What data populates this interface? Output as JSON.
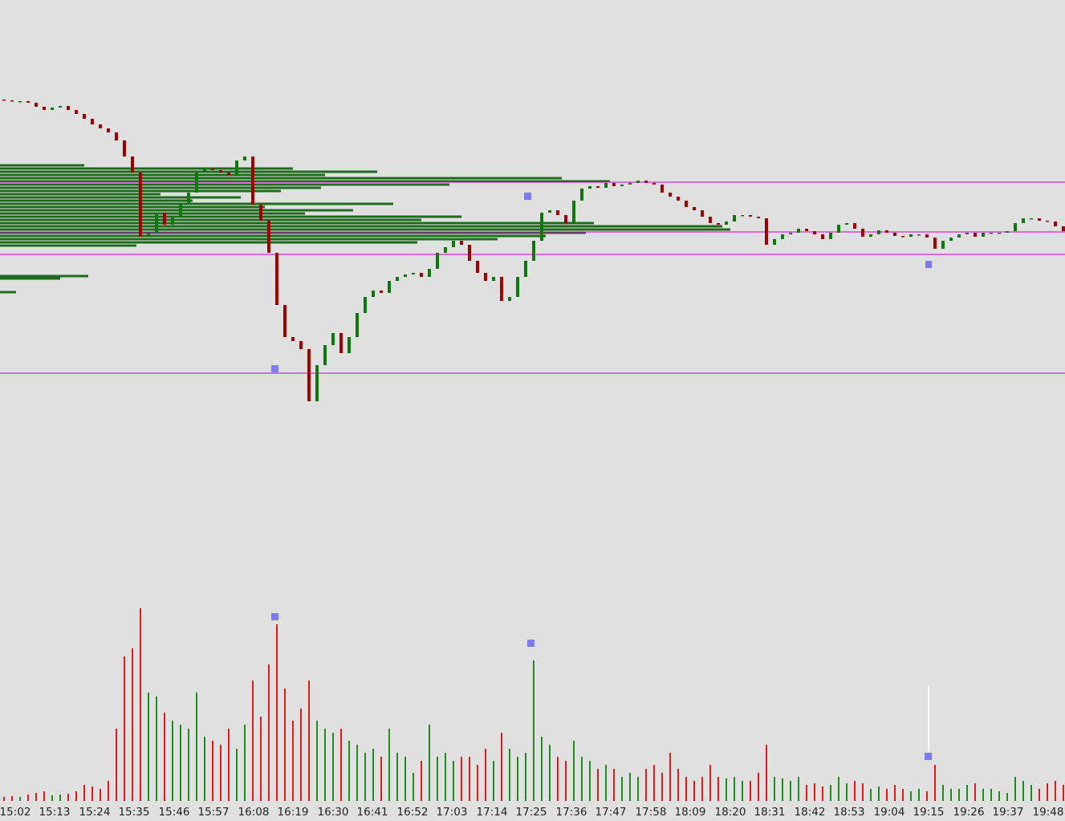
{
  "chart_data": [
    {
      "type": "candlestick",
      "xlim": [
        0,
        132.7
      ],
      "ylim": [
        0,
        700
      ],
      "up_color": "#0b7a0b",
      "down_color": "#a00000",
      "open": [
        576,
        575,
        574,
        574,
        572,
        567,
        563,
        566,
        568,
        563,
        558,
        552,
        545,
        540,
        535,
        525,
        505,
        485,
        405,
        410,
        435,
        420,
        430,
        445,
        460,
        485,
        490,
        488,
        485,
        482,
        500,
        505,
        445,
        425,
        385,
        320,
        280,
        275,
        265,
        200,
        245,
        270,
        285,
        260,
        280,
        310,
        330,
        338,
        335,
        350,
        355,
        358,
        360,
        355,
        365,
        385,
        392,
        400,
        395,
        375,
        360,
        350,
        355,
        325,
        330,
        355,
        375,
        400,
        435,
        438,
        432,
        422,
        450,
        465,
        468,
        466,
        472,
        468,
        470,
        472,
        475,
        472,
        470,
        460,
        455,
        450,
        442,
        438,
        430,
        422,
        420,
        424,
        432,
        432,
        430,
        428,
        395,
        402,
        408,
        410,
        415,
        412,
        408,
        402,
        410,
        420,
        422,
        415,
        405,
        408,
        413,
        410,
        406,
        405,
        408,
        408,
        404,
        390,
        400,
        404,
        408,
        410,
        405,
        410,
        410,
        410,
        412,
        422,
        428,
        428,
        425,
        424,
        418
      ],
      "close": [
        575,
        574,
        574,
        572,
        567,
        563,
        566,
        568,
        563,
        558,
        552,
        545,
        540,
        535,
        525,
        505,
        485,
        405,
        410,
        435,
        420,
        430,
        445,
        460,
        485,
        490,
        488,
        485,
        482,
        500,
        505,
        445,
        425,
        385,
        320,
        280,
        275,
        265,
        200,
        245,
        270,
        285,
        260,
        280,
        310,
        330,
        338,
        335,
        350,
        355,
        358,
        360,
        355,
        365,
        385,
        392,
        400,
        395,
        375,
        360,
        350,
        355,
        325,
        330,
        355,
        375,
        400,
        435,
        438,
        432,
        422,
        450,
        465,
        468,
        466,
        472,
        468,
        470,
        472,
        475,
        472,
        470,
        460,
        455,
        450,
        442,
        438,
        430,
        422,
        420,
        424,
        432,
        432,
        430,
        428,
        395,
        402,
        408,
        410,
        415,
        412,
        408,
        402,
        410,
        420,
        422,
        415,
        405,
        408,
        413,
        410,
        406,
        405,
        408,
        408,
        404,
        390,
        400,
        404,
        408,
        410,
        405,
        410,
        410,
        410,
        412,
        422,
        428,
        428,
        425,
        424,
        418,
        412
      ],
      "levels": [
        473,
        411,
        383,
        235
      ],
      "level_color": "#cc00cc",
      "profile": {
        "color": "#1e6b1e",
        "xlim": [
          0,
          1327
        ],
        "prices": [
          494,
          490,
          486,
          482,
          478,
          474,
          470,
          466,
          462,
          458,
          454,
          450,
          446,
          442,
          438,
          434,
          430,
          426,
          422,
          418,
          414,
          410,
          406,
          402,
          398,
          394,
          356,
          353,
          336
        ],
        "values": [
          105,
          365,
          470,
          405,
          700,
          760,
          560,
          400,
          350,
          200,
          300,
          240,
          490,
          330,
          440,
          380,
          575,
          525,
          740,
          900,
          910,
          730,
          680,
          620,
          520,
          170,
          110,
          75,
          20
        ]
      }
    },
    {
      "type": "bar",
      "xlim": [
        0,
        132.7
      ],
      "ylim": [
        0,
        260
      ],
      "up_color": "#1e8c1e",
      "down_color": "#e01a1a",
      "values": [
        5,
        6,
        5,
        8,
        10,
        12,
        7,
        8,
        9,
        12,
        20,
        18,
        15,
        25,
        90,
        180,
        190,
        240,
        135,
        130,
        110,
        100,
        95,
        90,
        135,
        80,
        75,
        70,
        90,
        65,
        95,
        150,
        105,
        170,
        220,
        140,
        100,
        115,
        150,
        100,
        90,
        85,
        90,
        75,
        70,
        60,
        65,
        55,
        90,
        60,
        55,
        35,
        50,
        95,
        55,
        60,
        50,
        55,
        55,
        45,
        65,
        50,
        85,
        65,
        55,
        60,
        175,
        80,
        70,
        55,
        50,
        75,
        55,
        50,
        40,
        45,
        40,
        30,
        35,
        30,
        40,
        45,
        35,
        60,
        40,
        30,
        25,
        30,
        45,
        30,
        28,
        30,
        25,
        25,
        35,
        70,
        30,
        28,
        25,
        30,
        20,
        22,
        18,
        20,
        30,
        22,
        25,
        22,
        15,
        18,
        15,
        20,
        15,
        12,
        15,
        12,
        45,
        20,
        15,
        15,
        20,
        22,
        15,
        15,
        12,
        10,
        30,
        25,
        20,
        15,
        22,
        25,
        20
      ],
      "xticks": [
        {
          "value": 1.9,
          "label": "15:02"
        },
        {
          "value": 6.8,
          "label": "15:13"
        },
        {
          "value": 11.8,
          "label": "15:24"
        },
        {
          "value": 16.7,
          "label": "15:35"
        },
        {
          "value": 21.7,
          "label": "15:46"
        },
        {
          "value": 26.6,
          "label": "15:57"
        },
        {
          "value": 31.6,
          "label": "16:08"
        },
        {
          "value": 36.5,
          "label": "16:19"
        },
        {
          "value": 41.5,
          "label": "16:30"
        },
        {
          "value": 46.4,
          "label": "16:41"
        },
        {
          "value": 51.4,
          "label": "16:52"
        },
        {
          "value": 56.3,
          "label": "17:03"
        },
        {
          "value": 61.3,
          "label": "17:14"
        },
        {
          "value": 66.2,
          "label": "17:25"
        },
        {
          "value": 71.2,
          "label": "17:36"
        },
        {
          "value": 76.1,
          "label": "17:47"
        },
        {
          "value": 81.1,
          "label": "17:58"
        },
        {
          "value": 86.0,
          "label": "18:09"
        },
        {
          "value": 91.0,
          "label": "18:20"
        },
        {
          "value": 95.9,
          "label": "18:31"
        },
        {
          "value": 100.9,
          "label": "18:42"
        },
        {
          "value": 105.8,
          "label": "18:53"
        },
        {
          "value": 110.8,
          "label": "19:04"
        },
        {
          "value": 115.7,
          "label": "19:15"
        },
        {
          "value": 120.7,
          "label": "19:26"
        },
        {
          "value": 125.6,
          "label": "19:37"
        },
        {
          "value": 130.6,
          "label": "19:48"
        }
      ]
    }
  ]
}
